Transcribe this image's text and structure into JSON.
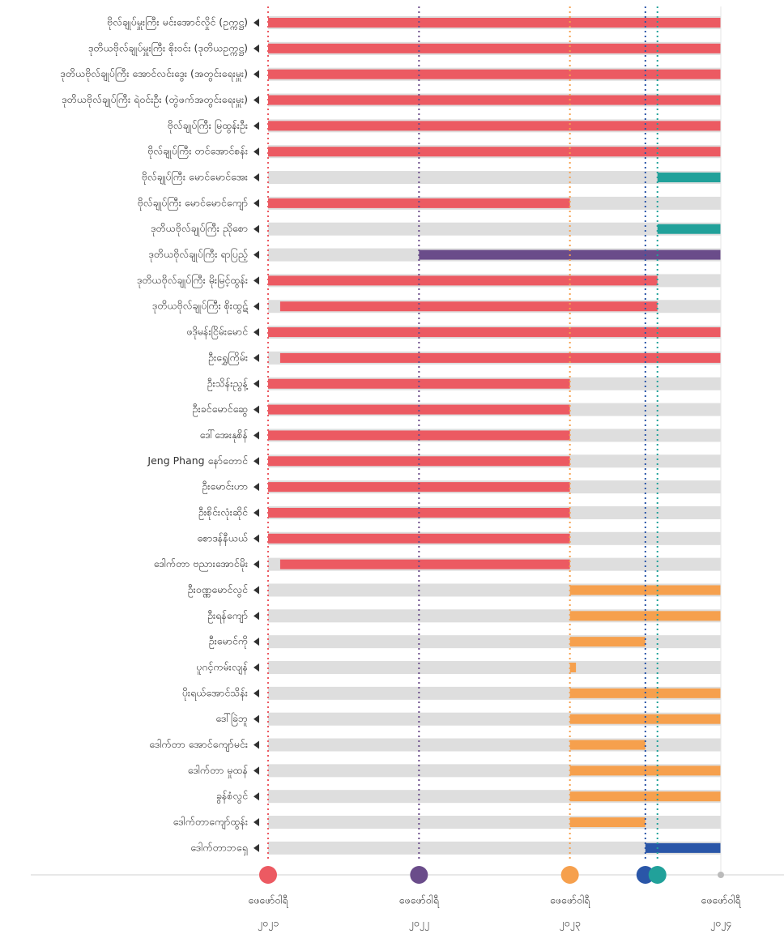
{
  "chart_data": {
    "type": "timeline",
    "xlim": [
      2021,
      2024
    ],
    "xticks": [
      {
        "value": 2021,
        "label": [
          "ဖေဖော်ဝါရီ",
          "၂၀၂၁"
        ]
      },
      {
        "value": 2022,
        "label": [
          "ဖေဖော်ဝါရီ",
          "၂၀၂၂"
        ]
      },
      {
        "value": 2023,
        "label": [
          "ဖေဖော်ဝါရီ",
          "၂၀၂၃"
        ]
      },
      {
        "value": 2024,
        "label": [
          "ဖေဖော်ဝါရီ",
          "၂၀၂၄"
        ]
      }
    ],
    "background_color": "#dedede",
    "markers": [
      {
        "x": 2021,
        "color": "#ec5a62",
        "line": true
      },
      {
        "x": 2022,
        "color": "#6a4c8a",
        "line": true
      },
      {
        "x": 2023,
        "color": "#f6a04d",
        "line": true
      },
      {
        "x": 2023.5,
        "color": "#2a56a8",
        "line": true
      },
      {
        "x": 2023.58,
        "color": "#21a19a",
        "line": true
      },
      {
        "x": 2024,
        "color": "#bbbbbb",
        "line": false
      }
    ],
    "rows": [
      {
        "name": "ဗိုလ်ချုပ်မှူးကြီး မင်းအောင်လှိုင် (ဥက္ကဋ္ဌ)",
        "start": 2021,
        "end": 2024,
        "color": "#ec5a62"
      },
      {
        "name": "ဒုတိယဗိုလ်ချုပ်မှူးကြီး စိုးဝင်း (ဒုတိယဥက္ကဋ္ဌ)",
        "start": 2021,
        "end": 2024,
        "color": "#ec5a62"
      },
      {
        "name": "ဒုတိယဗိုလ်ချုပ်ကြီး အောင်လင်းဒွေး (အတွင်းရေးမှူး)",
        "start": 2021,
        "end": 2024,
        "color": "#ec5a62"
      },
      {
        "name": "ဒုတိယဗိုလ်ချုပ်ကြီး ရဲဝင်းဦး (တွဲဖက်အတွင်းရေးမှူး)",
        "start": 2021,
        "end": 2024,
        "color": "#ec5a62"
      },
      {
        "name": "ဗိုလ်ချုပ်ကြီး မြထွန်းဦး",
        "start": 2021,
        "end": 2024,
        "color": "#ec5a62"
      },
      {
        "name": "ဗိုလ်ချုပ်ကြီး တင်အောင်စန်း",
        "start": 2021,
        "end": 2024,
        "color": "#ec5a62"
      },
      {
        "name": "ဗိုလ်ချုပ်ကြီး မောင်မောင်အေး",
        "start": 2023.58,
        "end": 2024,
        "color": "#21a19a"
      },
      {
        "name": "ဗိုလ်ချုပ်ကြီး မောင်မောင်ကျော်",
        "start": 2021,
        "end": 2023,
        "color": "#ec5a62"
      },
      {
        "name": "ဒုတိယဗိုလ်ချုပ်ကြီး ညိုစော",
        "start": 2023.58,
        "end": 2024,
        "color": "#21a19a"
      },
      {
        "name": "ဒုတိယဗိုလ်ချုပ်ကြီး ရာပြည့်",
        "start": 2022,
        "end": 2024,
        "color": "#6a4c8a"
      },
      {
        "name": "ဒုတိယဗိုလ်ချုပ်ကြီး မိုးမြင့်ထွန်း",
        "start": 2021,
        "end": 2023.58,
        "color": "#ec5a62"
      },
      {
        "name": "ဒုတိယဗိုလ်ချုပ်ကြီး စိုးထွဋ်",
        "start": 2021.08,
        "end": 2023.58,
        "color": "#ec5a62"
      },
      {
        "name": "ဖဒိုမန်းငြိမ်းမောင်",
        "start": 2021,
        "end": 2024,
        "color": "#ec5a62"
      },
      {
        "name": "ဦးရွှေကြိမ်း",
        "start": 2021.08,
        "end": 2024,
        "color": "#ec5a62"
      },
      {
        "name": "ဦးသိန်းညွန့်",
        "start": 2021,
        "end": 2023,
        "color": "#ec5a62"
      },
      {
        "name": "ဦးခင်မောင်ဆွေ",
        "start": 2021,
        "end": 2023,
        "color": "#ec5a62"
      },
      {
        "name": "ဒေါ်အေးနုစိန်",
        "start": 2021,
        "end": 2023,
        "color": "#ec5a62"
      },
      {
        "name": "Jeng Phang နော်တောင်",
        "start": 2021,
        "end": 2023,
        "color": "#ec5a62"
      },
      {
        "name": "ဦးမောင်းဟာ",
        "start": 2021,
        "end": 2023,
        "color": "#ec5a62"
      },
      {
        "name": "ဦးစိုင်းလုံးဆိုင်",
        "start": 2021,
        "end": 2023,
        "color": "#ec5a62"
      },
      {
        "name": "စောဒန်နီယယ်",
        "start": 2021,
        "end": 2023,
        "color": "#ec5a62"
      },
      {
        "name": "ဒေါက်တာ ဗညားအောင်မိုး",
        "start": 2021.08,
        "end": 2023,
        "color": "#ec5a62"
      },
      {
        "name": "ဦးဝဏ္ဏမောင်လွင်",
        "start": 2023,
        "end": 2024,
        "color": "#f6a04d"
      },
      {
        "name": "ဦးရန်ကျော်",
        "start": 2023,
        "end": 2024,
        "color": "#f6a04d"
      },
      {
        "name": "ဦးမောင်ကို",
        "start": 2023,
        "end": 2023.5,
        "color": "#f6a04d"
      },
      {
        "name": "ပူဂင့်ကမ်းလျန်",
        "start": 2023,
        "end": 2023.04,
        "color": "#f6a04d"
      },
      {
        "name": "ပိုးရယ်အောင်သိန်း",
        "start": 2023,
        "end": 2024,
        "color": "#f6a04d"
      },
      {
        "name": "ဒေါ်ခြဲဘူ",
        "start": 2023,
        "end": 2024,
        "color": "#f6a04d"
      },
      {
        "name": "ဒေါက်တာ အောင်ကျော်မင်း",
        "start": 2023,
        "end": 2023.5,
        "color": "#f6a04d"
      },
      {
        "name": "ဒေါက်တာ မှုထန်",
        "start": 2023,
        "end": 2024,
        "color": "#f6a04d"
      },
      {
        "name": "ခွန်စံလွင်",
        "start": 2023,
        "end": 2024,
        "color": "#f6a04d"
      },
      {
        "name": "ဒေါက်တာကျော်ထွန်း",
        "start": 2023,
        "end": 2023.5,
        "color": "#f6a04d"
      },
      {
        "name": "ဒေါက်တာဘရှေ",
        "start": 2023.5,
        "end": 2024,
        "color": "#2a56a8"
      }
    ]
  }
}
